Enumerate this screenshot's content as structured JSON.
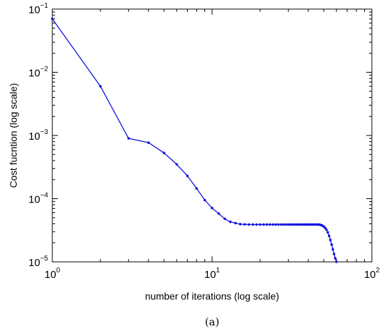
{
  "chart_data": {
    "type": "line",
    "xscale": "log",
    "yscale": "log",
    "xlim": [
      1,
      100
    ],
    "ylim": [
      1e-05,
      0.1
    ],
    "xticks": [
      {
        "value": 1,
        "base": "10",
        "exp": "0"
      },
      {
        "value": 10,
        "base": "10",
        "exp": "1"
      },
      {
        "value": 100,
        "base": "10",
        "exp": "2"
      }
    ],
    "yticks": [
      {
        "value": 0.1,
        "base": "10",
        "exp": "−1"
      },
      {
        "value": 0.01,
        "base": "10",
        "exp": "−2"
      },
      {
        "value": 0.001,
        "base": "10",
        "exp": "−3"
      },
      {
        "value": 0.0001,
        "base": "10",
        "exp": "−4"
      },
      {
        "value": 1e-05,
        "base": "10",
        "exp": "−5"
      }
    ],
    "xlabel": "number of iterations (log scale)",
    "ylabel": "Cost fucntion (log scale)",
    "caption": "(a)",
    "grid": false,
    "series": [
      {
        "color": "#1010e0",
        "marker": "dot",
        "x": [
          1,
          2,
          3,
          4,
          5,
          6,
          7,
          8,
          9,
          10,
          11,
          12,
          13,
          14,
          15,
          16,
          17,
          18,
          19,
          20,
          21,
          22,
          23,
          24,
          25,
          26,
          27,
          28,
          29,
          30,
          31,
          32,
          33,
          34,
          35,
          36,
          37,
          38,
          39,
          40,
          41,
          42,
          43,
          44,
          45,
          46,
          47,
          48,
          49,
          50,
          51,
          52,
          53,
          54,
          55,
          56,
          57,
          58,
          59,
          60
        ],
        "y": [
          0.07,
          0.006,
          0.0009,
          0.00077,
          0.00053,
          0.00035,
          0.00023,
          0.000145,
          9.5e-05,
          7.1e-05,
          5.8e-05,
          4.8e-05,
          4.3e-05,
          4.1e-05,
          3.95e-05,
          3.92e-05,
          3.9e-05,
          3.9e-05,
          3.9e-05,
          3.9e-05,
          3.9e-05,
          3.9e-05,
          3.9e-05,
          3.9e-05,
          3.9e-05,
          3.9e-05,
          3.9e-05,
          3.9e-05,
          3.9e-05,
          3.9e-05,
          3.9e-05,
          3.9e-05,
          3.9e-05,
          3.9e-05,
          3.9e-05,
          3.9e-05,
          3.9e-05,
          3.9e-05,
          3.9e-05,
          3.9e-05,
          3.9e-05,
          3.9e-05,
          3.9e-05,
          3.9e-05,
          3.9e-05,
          3.9e-05,
          3.88e-05,
          3.83e-05,
          3.75e-05,
          3.62e-05,
          3.45e-05,
          3.22e-05,
          2.93e-05,
          2.58e-05,
          2.22e-05,
          1.88e-05,
          1.58e-05,
          1.33e-05,
          1.14e-05,
          1e-05
        ]
      }
    ]
  }
}
